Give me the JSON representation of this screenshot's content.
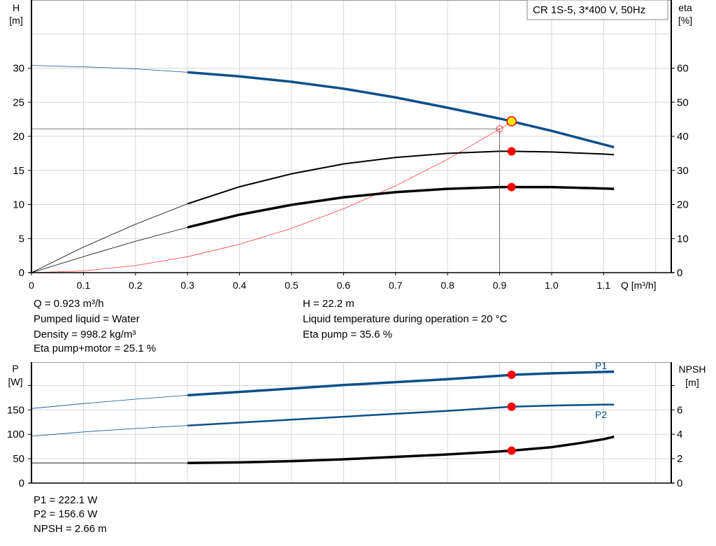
{
  "colors": {
    "head": "#0b4f8a",
    "eta": "#000000",
    "system": "#ff3b3b",
    "duty_point": "#ff0000",
    "duty_fill": "#ffee00",
    "grid": "#d6d6d6",
    "power": "#0b4f8a"
  },
  "legend_box": "CR 1S-5, 3*400 V, 50Hz",
  "info_top": {
    "q": "Q = 0.923 m³/h",
    "liquid": "Pumped liquid = Water",
    "density": "Density = 998.2 kg/m³",
    "eta_pm": "Eta pump+motor = 25.1 %",
    "h": "H = 22.2 m",
    "temp": "Liquid temperature during operation = 20 °C",
    "eta_pump": "Eta pump = 35.6 %"
  },
  "info_bottom": {
    "p1": "P1 = 222.1 W",
    "p2": "P2 = 156.6 W",
    "npsh": "NPSH = 2.66 m"
  },
  "chart_data": [
    {
      "type": "line",
      "xlabel": "Q [m³/h]",
      "ylabel_left": [
        "H",
        "[m]"
      ],
      "ylabel_right": [
        "eta",
        "[%]"
      ],
      "xlim": [
        0,
        1.23
      ],
      "ylim_left": [
        0,
        40
      ],
      "ylim_right": [
        0,
        80
      ],
      "xticks": [
        "0",
        "0.1",
        "0.2",
        "0.3",
        "0.4",
        "0.5",
        "0.6",
        "0.7",
        "0.8",
        "0.9",
        "1.0",
        "1.1"
      ],
      "yticks_left": [
        "0",
        "5",
        "10",
        "15",
        "20",
        "25",
        "30"
      ],
      "yticks_right": [
        "0",
        "10",
        "20",
        "30",
        "40",
        "50",
        "60"
      ],
      "grid": true,
      "series": [
        {
          "key": "H",
          "axis": "left",
          "x": [
            0,
            0.1,
            0.2,
            0.3,
            0.4,
            0.5,
            0.6,
            0.7,
            0.8,
            0.9,
            0.923,
            1.0,
            1.1,
            1.12
          ],
          "y": [
            30.4,
            30.2,
            29.9,
            29.4,
            28.8,
            28.0,
            27.0,
            25.7,
            24.2,
            22.6,
            22.2,
            20.8,
            18.8,
            18.4
          ],
          "thin_until": 0.3
        },
        {
          "key": "eta_pump",
          "axis": "right",
          "x": [
            0,
            0.1,
            0.2,
            0.3,
            0.4,
            0.5,
            0.6,
            0.7,
            0.8,
            0.9,
            0.923,
            1.0,
            1.1,
            1.12
          ],
          "y": [
            0,
            7.5,
            14.2,
            20.2,
            25.2,
            29.0,
            31.9,
            33.8,
            35.0,
            35.6,
            35.6,
            35.4,
            34.8,
            34.6
          ],
          "thin_until": 0.3
        },
        {
          "key": "eta_pump_motor",
          "axis": "right",
          "x": [
            0,
            0.1,
            0.2,
            0.3,
            0.4,
            0.5,
            0.6,
            0.7,
            0.8,
            0.9,
            0.923,
            1.0,
            1.1,
            1.12
          ],
          "y": [
            0,
            4.7,
            9.2,
            13.3,
            17.0,
            19.9,
            22.1,
            23.6,
            24.6,
            25.1,
            25.1,
            25.1,
            24.7,
            24.6
          ],
          "thin_until": 0.3
        },
        {
          "key": "system",
          "axis": "left",
          "x": [
            0,
            0.1,
            0.2,
            0.3,
            0.4,
            0.5,
            0.6,
            0.7,
            0.8,
            0.9,
            0.923
          ],
          "y": [
            0,
            0.26,
            1.04,
            2.34,
            4.16,
            6.5,
            9.36,
            12.74,
            16.64,
            21.06,
            22.15
          ]
        }
      ],
      "duty_point": {
        "q": 0.923,
        "h": 22.2,
        "eta_pump": 35.6,
        "eta_pump_motor": 25.1
      },
      "reference_point": {
        "q": 0.9,
        "h": 21.1
      }
    },
    {
      "type": "line",
      "ylabel_left": [
        "P",
        "[W]"
      ],
      "ylabel_right": [
        "NPSH",
        "[m]"
      ],
      "xlim": [
        0,
        1.23
      ],
      "ylim_left": [
        0,
        248
      ],
      "ylim_right": [
        0,
        9.92
      ],
      "yticks_left": [
        "0",
        "50",
        "100",
        "150"
      ],
      "yticks_right": [
        "0",
        "2",
        "4",
        "6"
      ],
      "grid": true,
      "series": [
        {
          "key": "P1",
          "name": "P1",
          "axis": "left",
          "x": [
            0,
            0.1,
            0.2,
            0.3,
            0.4,
            0.5,
            0.6,
            0.7,
            0.8,
            0.9,
            0.923,
            1.0,
            1.1,
            1.12
          ],
          "y": [
            153,
            163,
            172,
            180,
            187,
            194,
            201,
            207,
            213,
            220,
            222.1,
            225,
            228,
            228.5
          ],
          "thin_until": 0.3
        },
        {
          "key": "P2",
          "name": "P2",
          "axis": "left",
          "x": [
            0,
            0.1,
            0.2,
            0.3,
            0.4,
            0.5,
            0.6,
            0.7,
            0.8,
            0.9,
            0.923,
            1.0,
            1.1,
            1.12
          ],
          "y": [
            96,
            105,
            112,
            118,
            124,
            130,
            136,
            142,
            148,
            155,
            156.6,
            159,
            161,
            161
          ],
          "thin_until": 0.3
        },
        {
          "key": "NPSH",
          "axis": "right",
          "x": [
            0,
            0.3,
            0.4,
            0.5,
            0.6,
            0.7,
            0.8,
            0.9,
            0.923,
            1.0,
            1.05,
            1.1,
            1.12
          ],
          "y": [
            1.65,
            1.65,
            1.7,
            1.8,
            1.95,
            2.15,
            2.35,
            2.6,
            2.66,
            2.95,
            3.25,
            3.6,
            3.8
          ],
          "thin_until": 0.3
        }
      ],
      "duty_point": {
        "q": 0.923,
        "p1": 222.1,
        "p2": 156.6,
        "npsh": 2.66
      }
    }
  ]
}
